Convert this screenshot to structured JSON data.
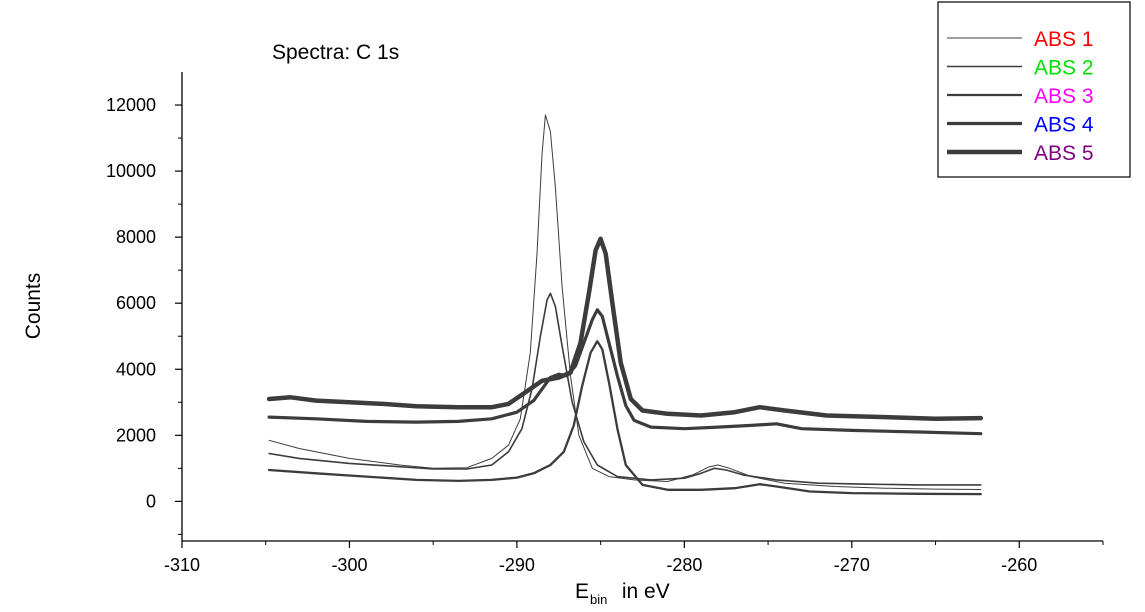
{
  "chart_data": {
    "type": "line",
    "title": "Spectra: C 1s",
    "xlabel_main": "E",
    "xlabel_sub": "bin",
    "xlabel_rest": " in eV",
    "ylabel": "Counts",
    "xlim": [
      -310,
      -255
    ],
    "ylim": [
      -1200,
      13000
    ],
    "xticks": [
      -310,
      -300,
      -290,
      -280,
      -270,
      -260
    ],
    "yticks": [
      0,
      2000,
      4000,
      6000,
      8000,
      10000,
      12000
    ],
    "grid": false,
    "legend_position": "top-right",
    "line_color": "#3c3c3c",
    "series": [
      {
        "name": "ABS 1",
        "label_color": "#ff0000",
        "line_width": 1,
        "points": [
          [
            -304.8,
            1850
          ],
          [
            -303,
            1600
          ],
          [
            -300,
            1300
          ],
          [
            -297,
            1100
          ],
          [
            -295,
            1000
          ],
          [
            -293,
            1020
          ],
          [
            -291.5,
            1300
          ],
          [
            -290.5,
            1700
          ],
          [
            -289.8,
            2500
          ],
          [
            -289.2,
            4500
          ],
          [
            -288.8,
            7500
          ],
          [
            -288.5,
            10500
          ],
          [
            -288.3,
            11700
          ],
          [
            -288.0,
            11200
          ],
          [
            -287.7,
            9500
          ],
          [
            -287.3,
            6500
          ],
          [
            -286.8,
            3800
          ],
          [
            -286.3,
            2000
          ],
          [
            -285.5,
            1000
          ],
          [
            -284.5,
            750
          ],
          [
            -283,
            650
          ],
          [
            -281,
            600
          ],
          [
            -279.5,
            800
          ],
          [
            -278.5,
            1050
          ],
          [
            -278,
            1100
          ],
          [
            -277.3,
            1000
          ],
          [
            -276,
            750
          ],
          [
            -274,
            550
          ],
          [
            -271,
            450
          ],
          [
            -268,
            400
          ],
          [
            -265,
            370
          ],
          [
            -262.3,
            360
          ]
        ]
      },
      {
        "name": "ABS 2",
        "label_color": "#00e000",
        "line_width": 1.6,
        "points": [
          [
            -304.8,
            1450
          ],
          [
            -303,
            1300
          ],
          [
            -300,
            1150
          ],
          [
            -297,
            1050
          ],
          [
            -295,
            980
          ],
          [
            -293,
            980
          ],
          [
            -291.5,
            1100
          ],
          [
            -290.5,
            1500
          ],
          [
            -289.7,
            2200
          ],
          [
            -289.1,
            3400
          ],
          [
            -288.6,
            5000
          ],
          [
            -288.2,
            6100
          ],
          [
            -288.0,
            6300
          ],
          [
            -287.7,
            5900
          ],
          [
            -287.3,
            4700
          ],
          [
            -286.7,
            3000
          ],
          [
            -286,
            1800
          ],
          [
            -285.2,
            1100
          ],
          [
            -284,
            750
          ],
          [
            -282,
            650
          ],
          [
            -280,
            700
          ],
          [
            -279,
            850
          ],
          [
            -278.2,
            1000
          ],
          [
            -277.5,
            950
          ],
          [
            -276.5,
            800
          ],
          [
            -274.5,
            650
          ],
          [
            -272,
            550
          ],
          [
            -269,
            520
          ],
          [
            -266,
            500
          ],
          [
            -262.3,
            500
          ]
        ]
      },
      {
        "name": "ABS 3",
        "label_color": "#ff00ff",
        "line_width": 2.3,
        "points": [
          [
            -304.8,
            950
          ],
          [
            -302,
            850
          ],
          [
            -299,
            750
          ],
          [
            -296,
            650
          ],
          [
            -293.5,
            620
          ],
          [
            -291.5,
            650
          ],
          [
            -290,
            720
          ],
          [
            -289,
            850
          ],
          [
            -288,
            1100
          ],
          [
            -287.2,
            1500
          ],
          [
            -286.6,
            2300
          ],
          [
            -286.1,
            3500
          ],
          [
            -285.6,
            4500
          ],
          [
            -285.2,
            4850
          ],
          [
            -284.9,
            4600
          ],
          [
            -284.5,
            3600
          ],
          [
            -284.0,
            2200
          ],
          [
            -283.5,
            1100
          ],
          [
            -282.5,
            500
          ],
          [
            -281,
            350
          ],
          [
            -279,
            350
          ],
          [
            -277,
            400
          ],
          [
            -275.5,
            520
          ],
          [
            -274.5,
            450
          ],
          [
            -272.5,
            300
          ],
          [
            -270,
            250
          ],
          [
            -266,
            230
          ],
          [
            -262.3,
            220
          ]
        ]
      },
      {
        "name": "ABS 4",
        "label_color": "#0000ff",
        "line_width": 3.2,
        "points": [
          [
            -304.8,
            2550
          ],
          [
            -302,
            2500
          ],
          [
            -299,
            2420
          ],
          [
            -296,
            2400
          ],
          [
            -293.5,
            2420
          ],
          [
            -291.5,
            2500
          ],
          [
            -290,
            2700
          ],
          [
            -289,
            3050
          ],
          [
            -288.5,
            3400
          ],
          [
            -288,
            3750
          ],
          [
            -287.5,
            3850
          ],
          [
            -287,
            3800
          ],
          [
            -286.5,
            4100
          ],
          [
            -286,
            4800
          ],
          [
            -285.5,
            5500
          ],
          [
            -285.2,
            5800
          ],
          [
            -284.9,
            5600
          ],
          [
            -284.5,
            4800
          ],
          [
            -284,
            3800
          ],
          [
            -283.5,
            2900
          ],
          [
            -283,
            2450
          ],
          [
            -282,
            2250
          ],
          [
            -280,
            2200
          ],
          [
            -278,
            2250
          ],
          [
            -276,
            2300
          ],
          [
            -274.5,
            2350
          ],
          [
            -273,
            2200
          ],
          [
            -270,
            2150
          ],
          [
            -266,
            2100
          ],
          [
            -262.3,
            2050
          ]
        ]
      },
      {
        "name": "ABS 5",
        "label_color": "#800080",
        "line_width": 4.5,
        "points": [
          [
            -304.8,
            3100
          ],
          [
            -303.5,
            3150
          ],
          [
            -302,
            3050
          ],
          [
            -300,
            3000
          ],
          [
            -298,
            2950
          ],
          [
            -296,
            2880
          ],
          [
            -293.5,
            2850
          ],
          [
            -291.5,
            2850
          ],
          [
            -290.5,
            2950
          ],
          [
            -289.5,
            3300
          ],
          [
            -288.5,
            3650
          ],
          [
            -287.5,
            3750
          ],
          [
            -286.8,
            3900
          ],
          [
            -286.2,
            4800
          ],
          [
            -285.7,
            6300
          ],
          [
            -285.3,
            7600
          ],
          [
            -285.0,
            7950
          ],
          [
            -284.7,
            7500
          ],
          [
            -284.3,
            6000
          ],
          [
            -283.8,
            4200
          ],
          [
            -283.2,
            3100
          ],
          [
            -282.5,
            2750
          ],
          [
            -281,
            2650
          ],
          [
            -279,
            2600
          ],
          [
            -277,
            2700
          ],
          [
            -275.5,
            2850
          ],
          [
            -274,
            2750
          ],
          [
            -271.5,
            2600
          ],
          [
            -268,
            2550
          ],
          [
            -265,
            2500
          ],
          [
            -262.3,
            2520
          ]
        ]
      }
    ]
  }
}
